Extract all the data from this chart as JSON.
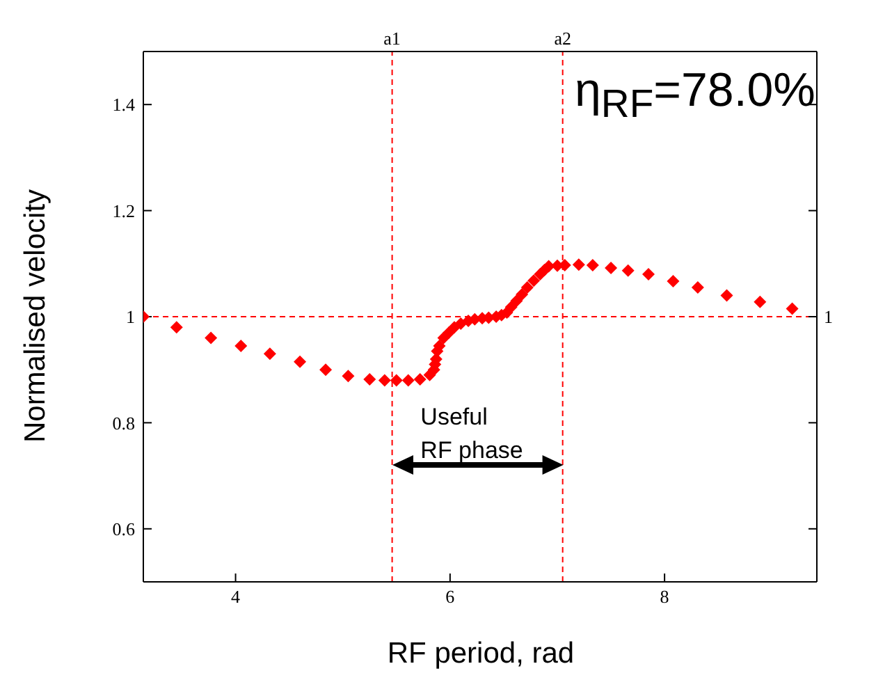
{
  "chart_data": {
    "type": "scatter",
    "xlabel": "RF period, rad",
    "ylabel": "Normalised velocity",
    "annotations": [
      "η$_{RF}$=78.0%",
      "Useful RF phase"
    ],
    "xlim": [
      3.14,
      9.42
    ],
    "xticks": [
      4,
      6,
      8
    ],
    "ylim": [
      0.5,
      1.5
    ],
    "yticks": [
      0.6,
      0.8,
      1,
      1.2,
      1.4
    ],
    "marker": "diamond",
    "ref_lines": [
      {
        "axis": "x",
        "value": 5.46,
        "label": "a1",
        "color": "#ff0000",
        "line_style": "dashed"
      },
      {
        "axis": "x",
        "value": 7.05,
        "label": "a2",
        "color": "#ff0000",
        "line_style": "dashed"
      },
      {
        "axis": "y",
        "value": 1,
        "label": "1",
        "color": "#ff0000",
        "line_style": "dashed"
      }
    ],
    "series": [
      {
        "color": "#ff0000",
        "x": [
          3.14,
          3.45,
          3.77,
          4.05,
          4.32,
          4.6,
          4.84,
          5.05,
          5.25,
          5.39,
          5.5,
          5.61,
          5.72,
          5.81,
          5.85,
          5.86,
          5.87,
          5.88,
          5.9,
          5.94,
          5.99,
          6.04,
          6.1,
          6.17,
          6.23,
          6.3,
          6.36,
          6.43,
          6.48,
          6.53,
          6.57,
          6.62,
          6.67,
          6.72,
          6.78,
          6.84,
          6.88,
          6.92,
          7.0,
          7.07,
          7.2,
          7.33,
          7.5,
          7.66,
          7.85,
          8.08,
          8.31,
          8.58,
          8.89,
          9.19
        ],
        "values": [
          1.0,
          0.98,
          0.96,
          0.945,
          0.93,
          0.915,
          0.9,
          0.888,
          0.882,
          0.88,
          0.88,
          0.88,
          0.882,
          0.89,
          0.9,
          0.91,
          0.92,
          0.935,
          0.945,
          0.96,
          0.97,
          0.98,
          0.987,
          0.992,
          0.995,
          0.997,
          0.998,
          1.0,
          1.003,
          1.008,
          1.018,
          1.03,
          1.042,
          1.055,
          1.068,
          1.08,
          1.088,
          1.095,
          1.096,
          1.097,
          1.098,
          1.097,
          1.092,
          1.087,
          1.08,
          1.067,
          1.055,
          1.04,
          1.028,
          1.015
        ]
      }
    ]
  }
}
